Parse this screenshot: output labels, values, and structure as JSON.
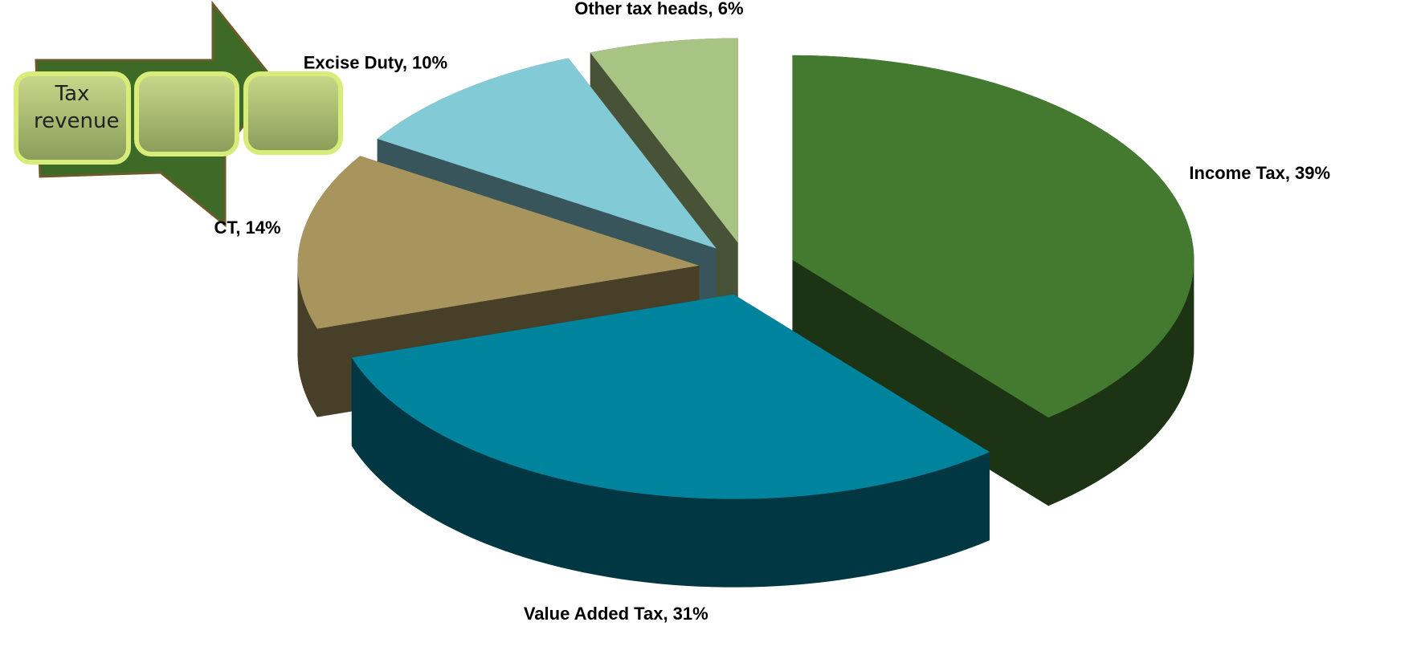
{
  "chart_data": {
    "type": "pie3d",
    "values": [
      39,
      31,
      14,
      10,
      6
    ],
    "value_labels": [
      "Income Tax, 39%",
      "Value Added Tax, 31%",
      "CT, 14%",
      "Excise Duty, 10%",
      "Other tax heads, 6%"
    ],
    "colors": [
      "#437a2f",
      "#00849e",
      "#a8955e",
      "#82cad6",
      "#a8c484"
    ],
    "exploded": true
  },
  "callout": {
    "text": "Tax revenue"
  }
}
